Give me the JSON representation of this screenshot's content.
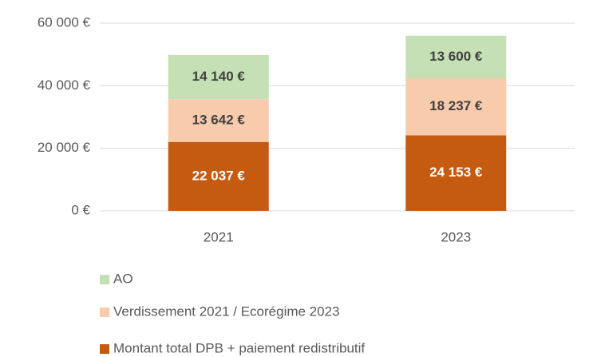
{
  "chart_data": {
    "type": "stacked_bar",
    "categories": [
      "2021",
      "2023"
    ],
    "series": [
      {
        "name": "Montant total DPB + paiement redistributif",
        "color": "#c55a11",
        "values": [
          22037,
          24153
        ],
        "value_labels": [
          "22 037 €",
          "24 153 €"
        ]
      },
      {
        "name": "Verdissement 2021 / Ecorégime 2023",
        "color": "#f8cbad",
        "values": [
          13642,
          18237
        ],
        "value_labels": [
          "13 642 €",
          "18 237 €"
        ]
      },
      {
        "name": "AO",
        "color": "#c5e0b4",
        "values": [
          14140,
          13600
        ],
        "value_labels": [
          "14 140 €",
          "13 600 €"
        ]
      }
    ],
    "ylim": [
      0,
      60000
    ],
    "yticks": [
      {
        "value": 0,
        "label": "0 €"
      },
      {
        "value": 20000,
        "label": "20 000 €"
      },
      {
        "value": 40000,
        "label": "40 000 €"
      },
      {
        "value": 60000,
        "label": "60 000 €"
      }
    ],
    "grid": true
  }
}
